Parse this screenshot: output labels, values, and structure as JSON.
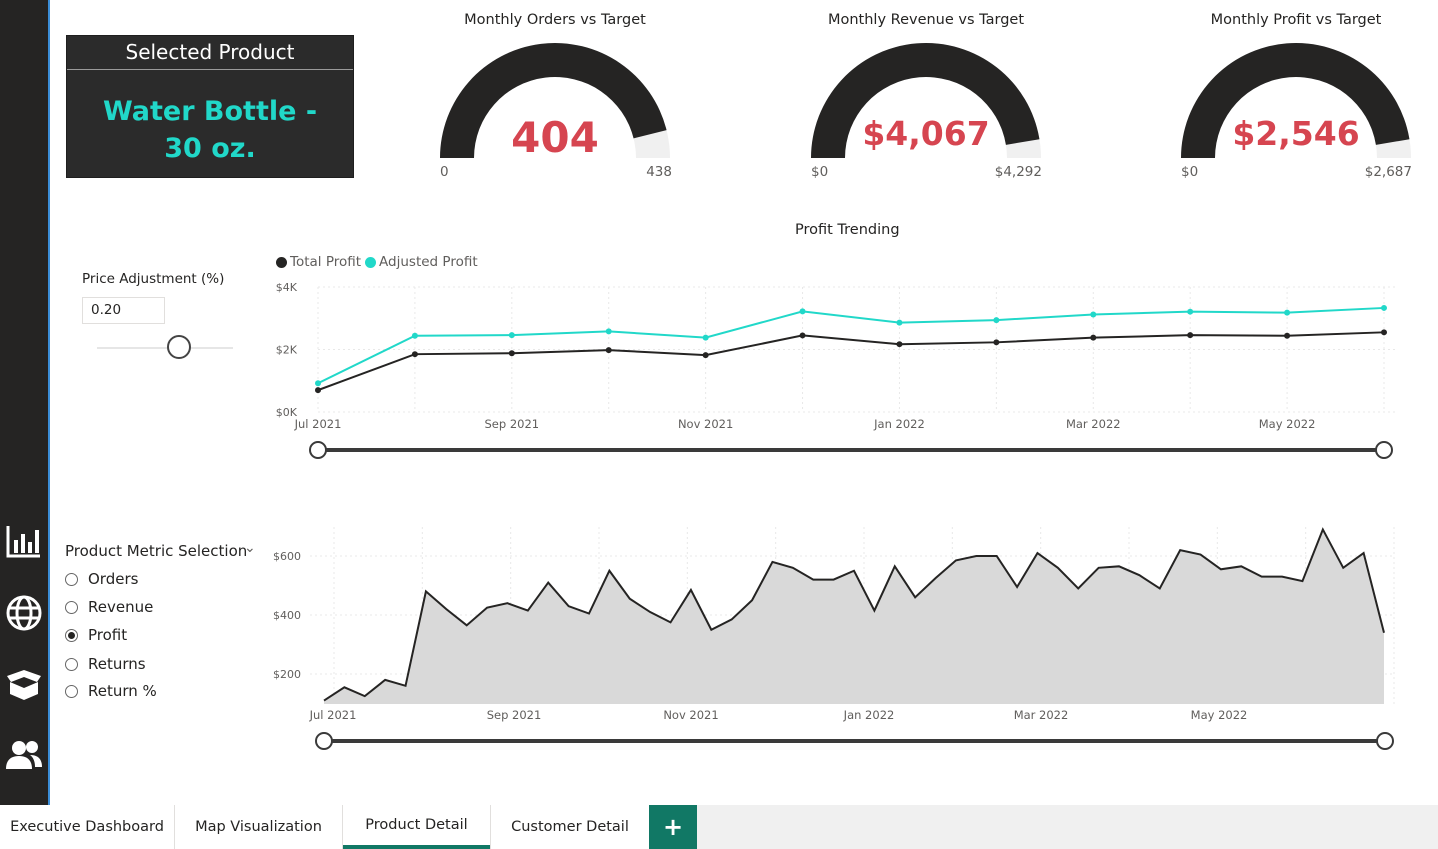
{
  "selected_product": {
    "title": "Selected Product",
    "value": "Water Bottle - 30 oz."
  },
  "gauges": [
    {
      "title": "Monthly Orders vs Target",
      "value": "404",
      "min": "0",
      "max": "438",
      "fraction": 0.922
    },
    {
      "title": "Monthly Revenue vs Target",
      "value": "$4,067",
      "min": "$0",
      "max": "$4,292",
      "fraction": 0.948
    },
    {
      "title": "Monthly Profit vs Target",
      "value": "$2,546",
      "min": "$0",
      "max": "$2,687",
      "fraction": 0.948
    }
  ],
  "price_adjustment": {
    "label": "Price Adjustment (%)",
    "value": "0.20",
    "slider_fraction": 0.6
  },
  "metric_selection": {
    "title": "Product Metric Selection",
    "options": [
      "Orders",
      "Revenue",
      "Profit",
      "Returns",
      "Return %"
    ],
    "selected": "Profit"
  },
  "sidebar": {
    "icons": [
      "bar-chart-icon",
      "globe-icon",
      "box-icon",
      "users-icon"
    ]
  },
  "tabs": {
    "items": [
      "Executive Dashboard",
      "Map Visualization",
      "Product Detail",
      "Customer Detail"
    ],
    "active": "Product Detail",
    "add_label": "+"
  },
  "colors": {
    "accent": "#21d8c9",
    "gauge_value": "#d64550",
    "gauge_fill": "#252423",
    "tab_accent": "#117865"
  },
  "chart_data": [
    {
      "type": "line",
      "title": "Profit Trending",
      "x_ticks": [
        "Jul 2021",
        "Sep 2021",
        "Nov 2021",
        "Jan 2022",
        "Mar 2022",
        "May 2022"
      ],
      "y_ticks": [
        "$0K",
        "$2K",
        "$4K"
      ],
      "ylim": [
        0,
        4000
      ],
      "legend": "top-left",
      "grid": true,
      "x": [
        "2021-07-01",
        "2021-08-01",
        "2021-09-01",
        "2021-10-01",
        "2021-11-01",
        "2021-12-01",
        "2022-01-01",
        "2022-02-01",
        "2022-03-01",
        "2022-04-01",
        "2022-05-01",
        "2022-06-01"
      ],
      "series": [
        {
          "name": "Total Profit",
          "color": "#252423",
          "values": [
            700,
            1850,
            1880,
            1980,
            1820,
            2450,
            2170,
            2230,
            2380,
            2460,
            2440,
            2550
          ]
        },
        {
          "name": "Adjusted Profit",
          "color": "#21d8c9",
          "values": [
            920,
            2440,
            2460,
            2580,
            2380,
            3220,
            2860,
            2940,
            3120,
            3210,
            3180,
            3330
          ]
        }
      ]
    },
    {
      "type": "area",
      "x_ticks": [
        "Jul 2021",
        "Sep 2021",
        "Nov 2021",
        "Jan 2022",
        "Mar 2022",
        "May 2022"
      ],
      "y_ticks": [
        "$200",
        "$400",
        "$600"
      ],
      "ylim": [
        100,
        700
      ],
      "grid": true,
      "color": "#252423",
      "fill": "#d9d9d9",
      "values": [
        110,
        155,
        125,
        180,
        160,
        480,
        420,
        365,
        425,
        440,
        415,
        510,
        430,
        405,
        550,
        455,
        410,
        375,
        485,
        350,
        385,
        450,
        580,
        560,
        520,
        520,
        550,
        415,
        565,
        460,
        525,
        585,
        600,
        600,
        495,
        610,
        560,
        490,
        560,
        565,
        535,
        490,
        620,
        605,
        555,
        565,
        530,
        530,
        515,
        690,
        560,
        610,
        340
      ]
    }
  ]
}
